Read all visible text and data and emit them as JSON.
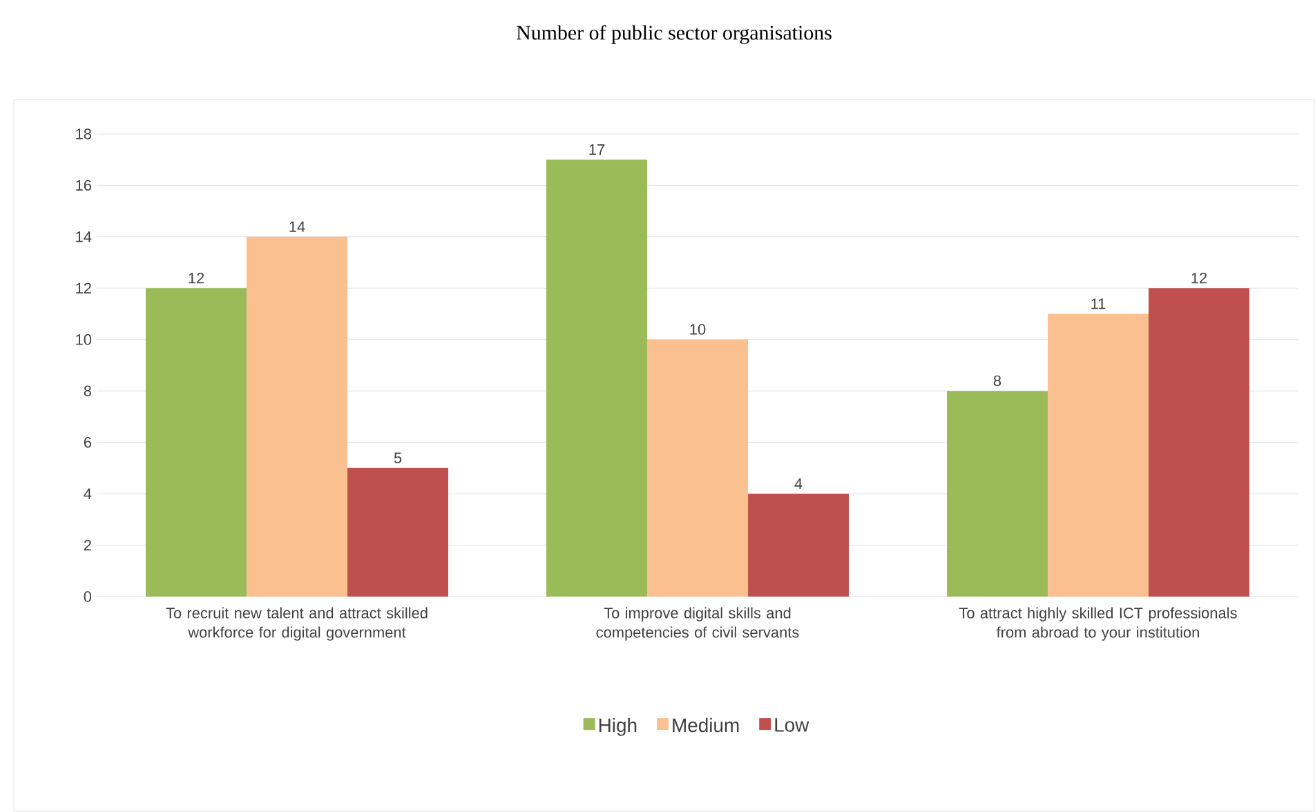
{
  "chart_data": {
    "type": "bar",
    "title": "Number of public sector organisations",
    "categories": [
      "To recruit new talent and attract skilled workforce for digital government",
      "To improve digital skills and competencies of civil servants",
      "To attract highly skilled ICT professionals from abroad to your institution"
    ],
    "series": [
      {
        "name": "High",
        "color": "#9bbb59",
        "values": [
          12,
          17,
          8
        ]
      },
      {
        "name": "Medium",
        "color": "#fac090",
        "values": [
          14,
          10,
          11
        ]
      },
      {
        "name": "Low",
        "color": "#c0504d",
        "values": [
          5,
          4,
          12
        ]
      }
    ],
    "ylim": [
      0,
      18
    ],
    "yticks": [
      0,
      2,
      4,
      6,
      8,
      10,
      12,
      14,
      16,
      18
    ],
    "grid": "y",
    "legend": "bottom",
    "data_labels": true
  }
}
